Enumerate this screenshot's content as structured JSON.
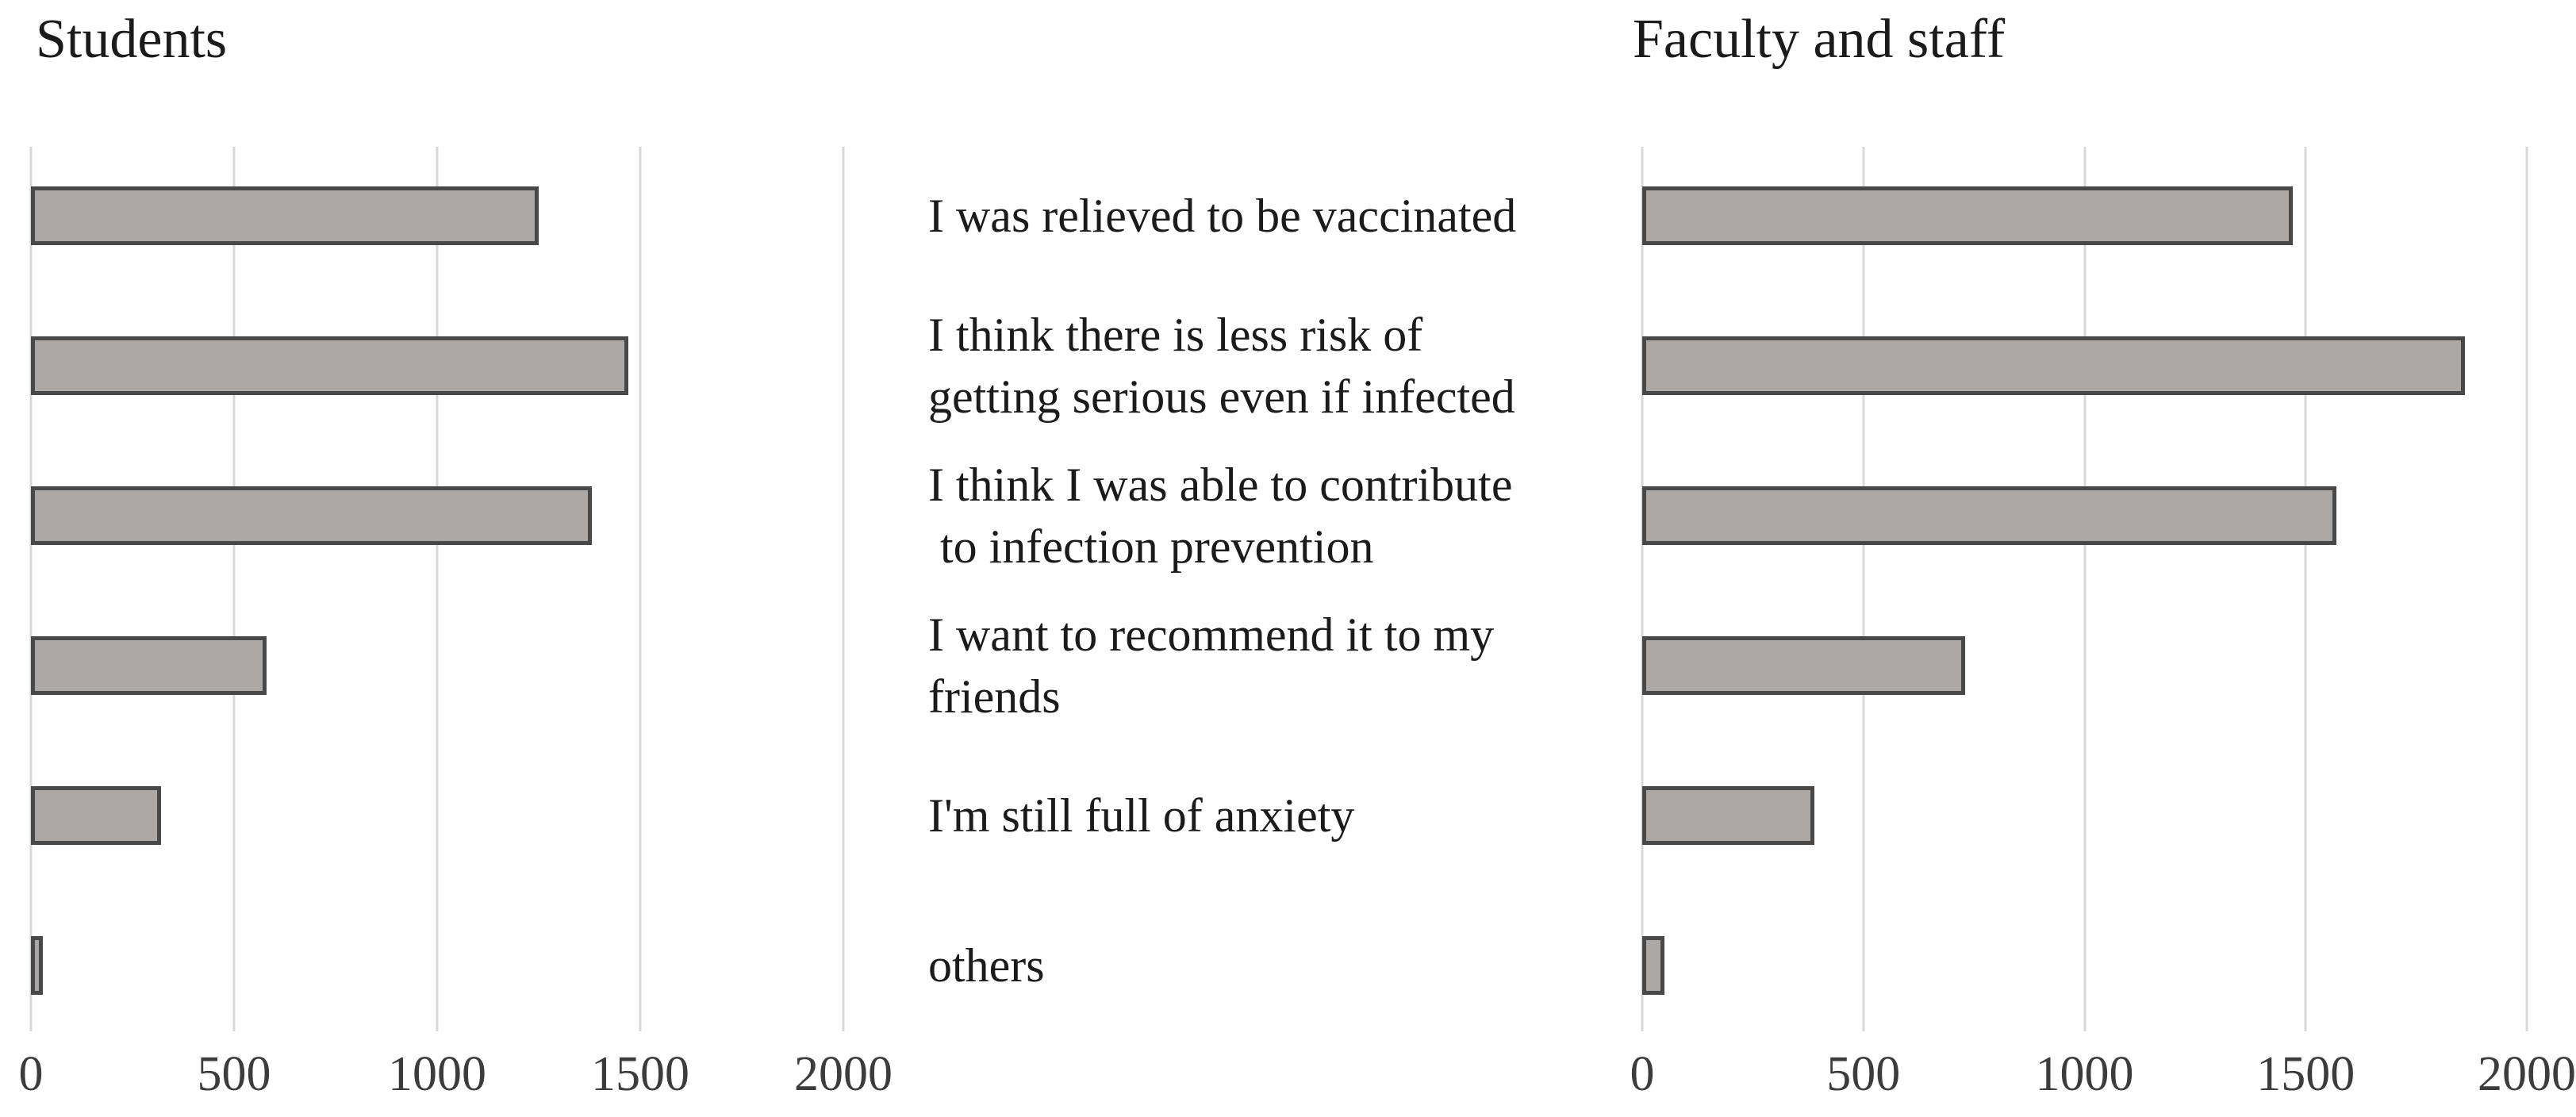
{
  "figure": {
    "left_chart_title": "Students",
    "right_chart_title": "Faculty and staff"
  },
  "category_labels": [
    "I was relieved to be vaccinated",
    "I think there is less risk of\ngetting serious even if infected",
    "I think I was able to contribute\n to infection prevention",
    "I want to recommend it to my friends",
    "I'm still full of anxiety",
    "others"
  ],
  "chart_data": [
    {
      "type": "bar",
      "orientation": "horizontal",
      "title": "Students",
      "categories": [
        "I was relieved to be vaccinated",
        "I think there is less risk of\ngetting serious even if infected",
        "I think I was able to contribute\n to infection prevention",
        "I want to recommend it to my friends",
        "I'm still full of anxiety",
        "others"
      ],
      "values": [
        1250,
        1470,
        1380,
        580,
        320,
        30
      ],
      "xlim": [
        0,
        2000
      ],
      "xticks": [
        "0",
        "500",
        "1000",
        "1500",
        "2000"
      ],
      "grid": "vertical",
      "legend": "none",
      "bar_color": "#aba8a6",
      "bar_border_color": "#484848",
      "gridline_color": "#d8d8d8"
    },
    {
      "type": "bar",
      "orientation": "horizontal",
      "title": "Faculty and staff",
      "categories": [
        "I was relieved to be vaccinated",
        "I think there is less risk of\ngetting serious even if infected",
        "I think I was able to contribute\n to infection prevention",
        "I want to recommend it to my friends",
        "I'm still full of anxiety",
        "others"
      ],
      "values": [
        1470,
        1860,
        1570,
        730,
        390,
        50
      ],
      "xlim": [
        0,
        2000
      ],
      "xticks": [
        "0",
        "500",
        "1000",
        "1500",
        "2000"
      ],
      "grid": "vertical",
      "legend": "none",
      "bar_color": "#aba8a6",
      "bar_border_color": "#484848",
      "gridline_color": "#d8d8d8"
    }
  ]
}
